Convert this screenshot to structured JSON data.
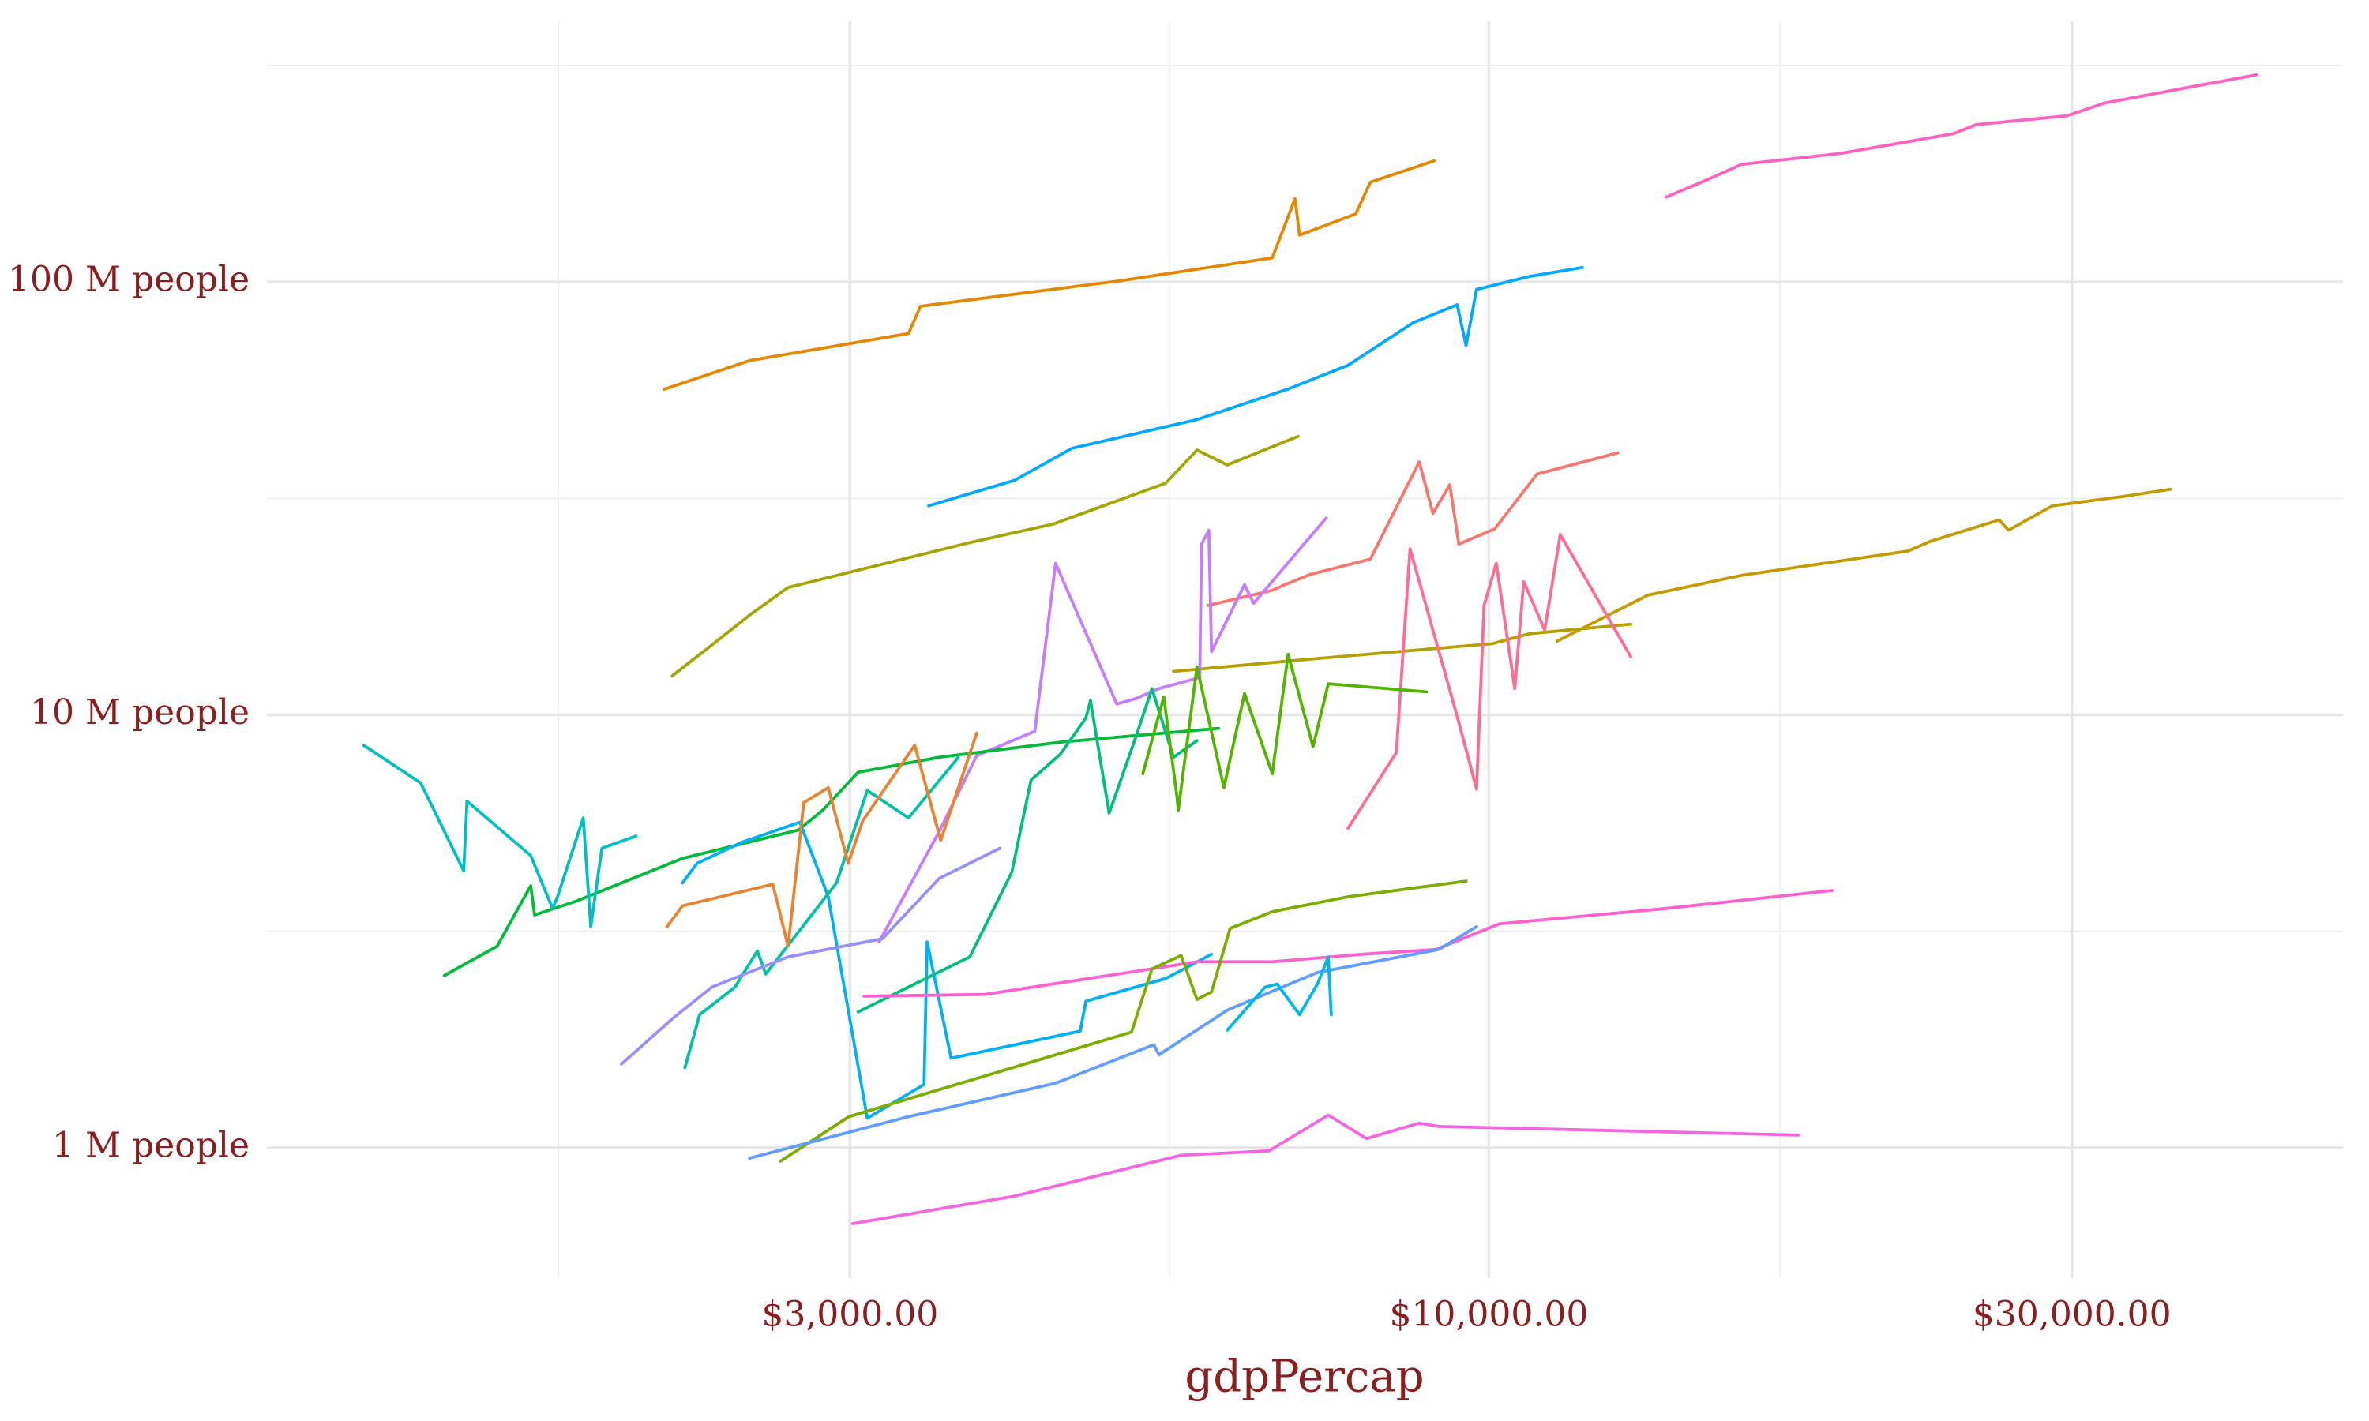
{
  "chart_data": {
    "type": "line",
    "x_label": "gdpPercap",
    "xscale": "log",
    "yscale": "log",
    "grid": true,
    "xlim": [
      1000,
      50000
    ],
    "ylim": [
      500000,
      400000000
    ],
    "xticks": [
      {
        "value": 3000,
        "label": "$3,000.00"
      },
      {
        "value": 10000,
        "label": "$10,000.00"
      },
      {
        "value": 30000,
        "label": "$30,000.00"
      }
    ],
    "yticks": [
      {
        "value": 1000000,
        "label": "1 M people"
      },
      {
        "value": 10000000,
        "label": "10 M people"
      },
      {
        "value": 100000000,
        "label": "100 M people"
      }
    ],
    "xminor": [
      1732,
      5477,
      17321
    ],
    "yminor": [
      3162278,
      31622777,
      316227766
    ],
    "series": [
      {
        "color": "#E58700",
        "x": [
          2114,
          2483,
          3350,
          3427,
          5000,
          6650,
          6940,
          7000,
          7780,
          8000,
          9020
        ],
        "values": [
          56500000,
          65800000,
          76000000,
          87900000,
          100700000,
          113700000,
          155700000,
          128300000,
          143600000,
          170000000,
          190500000
        ]
      },
      {
        "color": "#FF61C3",
        "x": [
          13960,
          15000,
          16100,
          19360,
          23990,
          25060,
          29720,
          31900,
          42500
        ],
        "values": [
          157000000,
          171000000,
          187000000,
          198000000,
          220000000,
          231000000,
          242000000,
          259000000,
          301000000
        ]
      },
      {
        "color": "#00A9FF",
        "x": [
          3480,
          4090,
          4560,
          5770,
          6840,
          7670,
          8670,
          9420,
          9580,
          9770,
          10800,
          11930
        ],
        "values": [
          30400000,
          34800000,
          41300000,
          48100000,
          56500000,
          64200000,
          80500000,
          88600000,
          71300000,
          96100000,
          103000000,
          108000000
        ]
      },
      {
        "color": "#A3A500",
        "x": [
          2146,
          2313,
          2483,
          2670,
          3760,
          4400,
          5440,
          5770,
          6110,
          6980
        ],
        "values": [
          12300000,
          14500000,
          17000000,
          19700000,
          25000000,
          27600000,
          34300000,
          40900000,
          37800000,
          44000000
        ]
      },
      {
        "color": "#C49A00",
        "x": [
          11370,
          13490,
          16100,
          22030,
          23010,
          26160,
          26620,
          28920,
          32900,
          36130
        ],
        "values": [
          14800000,
          18900000,
          21000000,
          23900000,
          25200000,
          28200000,
          26700000,
          30400000,
          31900000,
          33200000
        ]
      },
      {
        "color": "#B79F00",
        "x": [
          5520,
          7240,
          10060,
          10800,
          13070
        ],
        "values": [
          12600000,
          13500000,
          14600000,
          15400000,
          16200000
        ]
      },
      {
        "color": "#F8766D",
        "x": [
          5890,
          6650,
          6810,
          7140,
          8000,
          8770,
          9000,
          9290,
          9450,
          10110,
          10950,
          12750
        ],
        "values": [
          17900000,
          19400000,
          20000000,
          21100000,
          22900000,
          38400000,
          29200000,
          34000000,
          24800000,
          26900000,
          36000000,
          40300000
        ]
      },
      {
        "color": "#FF6C91",
        "x": [
          7670,
          8400,
          8620,
          9450,
          9770,
          9910,
          10140,
          10500,
          10680,
          11110,
          11440,
          13070
        ],
        "values": [
          5470000,
          8180000,
          24200000,
          9610000,
          6740000,
          17900000,
          22400000,
          11500000,
          20300000,
          15700000,
          26100000,
          13600000
        ]
      },
      {
        "color": "#C77CFF",
        "x": [
          3170,
          3550,
          3810,
          4250,
          4420,
          4960,
          5140,
          5370,
          5800,
          5820,
          5900,
          5930,
          6310,
          6420,
          7360
        ],
        "values": [
          2990000,
          5380000,
          8050000,
          9160000,
          22400000,
          10600000,
          10900000,
          11500000,
          12200000,
          24800000,
          26700000,
          14000000,
          20000000,
          18100000,
          28500000
        ]
      },
      {
        "color": "#00BA38",
        "x": [
          1397,
          1543,
          1644,
          1656,
          1790,
          2188,
          2723,
          2850,
          3047,
          3550,
          4460,
          6010
        ],
        "values": [
          2500000,
          2920000,
          4030000,
          3450000,
          3710000,
          4660000,
          5420000,
          6020000,
          7370000,
          7980000,
          8650000,
          9310000
        ]
      },
      {
        "color": "#00BFC4",
        "x": [
          1200,
          1336,
          1449,
          1458,
          1644,
          1713,
          1728,
          1815,
          1841,
          1880,
          2005
        ],
        "values": [
          8510000,
          6960000,
          4360000,
          6320000,
          4730000,
          3570000,
          3780000,
          5780000,
          3240000,
          4920000,
          5250000
        ]
      },
      {
        "color": "#00B0F6",
        "x": [
          2188,
          2249,
          2449,
          2730,
          2880,
          3100,
          3450,
          3470,
          3630,
          4630,
          4680,
          5440,
          5930
        ],
        "values": [
          4090000,
          4540000,
          5080000,
          5650000,
          3800000,
          1170000,
          1400000,
          2990000,
          1610000,
          1860000,
          2180000,
          2460000,
          2800000
        ]
      },
      {
        "color": "#00BF7D",
        "x": [
          3047,
          3760,
          4070,
          4220,
          4460,
          4680,
          4720,
          4890,
          5140,
          5300,
          5520,
          5770
        ],
        "values": [
          2060000,
          2760000,
          4330000,
          7070000,
          8110000,
          9840000,
          10800000,
          5930000,
          8870000,
          11500000,
          7980000,
          8720000
        ]
      },
      {
        "color": "#53B400",
        "x": [
          5210,
          5420,
          5560,
          5570,
          5770,
          6070,
          6310,
          6650,
          6850,
          7180,
          7390,
          8890
        ],
        "values": [
          7310000,
          11000000,
          6370000,
          6020000,
          12900000,
          6790000,
          11200000,
          7310000,
          13800000,
          8450000,
          11800000,
          11300000
        ]
      },
      {
        "color": "#F564E3",
        "x": [
          3015,
          4090,
          5600,
          6610,
          7390,
          7940,
          8770,
          9100,
          17910
        ],
        "values": [
          668000,
          773000,
          961000,
          984000,
          1190000,
          1050000,
          1140000,
          1120000,
          1070000
        ]
      },
      {
        "color": "#FD61D1",
        "x": [
          3080,
          3866,
          5300,
          5770,
          6650,
          7890,
          9050,
          10200,
          13960,
          19100
        ],
        "values": [
          2240000,
          2260000,
          2590000,
          2690000,
          2690000,
          2800000,
          2870000,
          3290000,
          3570000,
          3930000
        ]
      },
      {
        "color": "#7CAE00",
        "x": [
          2632,
          2994,
          5100,
          5300,
          5600,
          5770,
          5930,
          6140,
          6650,
          7670,
          9580
        ],
        "values": [
          931000,
          1180000,
          1850000,
          2590000,
          2780000,
          2200000,
          2290000,
          3210000,
          3510000,
          3800000,
          4130000
        ]
      },
      {
        "color": "#619CFF",
        "x": [
          2483,
          3350,
          4420,
          5320,
          5370,
          6110,
          7240,
          9100,
          9770
        ],
        "values": [
          946000,
          1180000,
          1410000,
          1730000,
          1640000,
          2080000,
          2540000,
          2870000,
          3240000
        ]
      },
      {
        "color": "#00B8E7",
        "x": [
          6110,
          6560,
          6710,
          7000,
          7240,
          7390,
          7430
        ],
        "values": [
          1870000,
          2350000,
          2390000,
          2030000,
          2390000,
          2760000,
          2030000
        ]
      },
      {
        "color": "#00C1A3",
        "x": [
          2198,
          2260,
          2416,
          2520,
          2560,
          2925,
          3100,
          3350,
          3680
        ],
        "values": [
          1530000,
          2030000,
          2350000,
          2850000,
          2520000,
          4090000,
          6690000,
          5780000,
          7980000
        ]
      },
      {
        "color": "#9590FF",
        "x": [
          1950,
          2153,
          2313,
          2670,
          3190,
          3550,
          3980
        ],
        "values": [
          1560000,
          2000000,
          2350000,
          2760000,
          3040000,
          4190000,
          4920000
        ]
      },
      {
        "color": "#EA8331",
        "x": [
          2125,
          2188,
          2594,
          2670,
          2750,
          2880,
          2990,
          3073,
          3390,
          3560,
          3810
        ],
        "values": [
          3240000,
          3620000,
          4060000,
          2920000,
          6270000,
          6790000,
          4540000,
          5690000,
          8510000,
          5130000,
          9080000
        ]
      }
    ]
  }
}
